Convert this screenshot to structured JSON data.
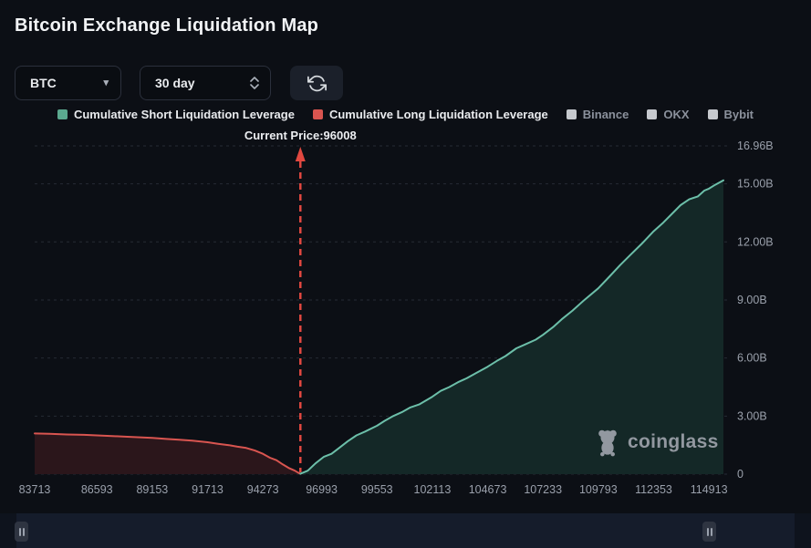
{
  "header": {
    "title": "Bitcoin Exchange Liquidation Map"
  },
  "controls": {
    "symbol_select": {
      "value": "BTC"
    },
    "range_select": {
      "value": "30 day"
    }
  },
  "icons": {
    "symbol_caret": "▾"
  },
  "legend": {
    "items": [
      {
        "label": "Cumulative Short Liquidation Leverage",
        "color": "#5ba98f",
        "active": true
      },
      {
        "label": "Cumulative Long Liquidation Leverage",
        "color": "#d95550",
        "active": true
      },
      {
        "label": "Binance",
        "color": "#c6c9ce",
        "active": false
      },
      {
        "label": "OKX",
        "color": "#c6c9ce",
        "active": false
      },
      {
        "label": "Bybit",
        "color": "#c6c9ce",
        "active": false
      }
    ]
  },
  "watermark": {
    "text": "coinglass"
  },
  "colors": {
    "background": "#0c0f15",
    "grid": "#262b35",
    "axis_label": "#9aa0ab",
    "short_line": "#6cbfa9",
    "short_fill": "#142827",
    "long_line": "#d95550",
    "long_fill": "#2b161b",
    "annotation": "#e14840"
  },
  "chart_data": {
    "type": "line",
    "title": "Bitcoin Exchange Liquidation Map",
    "legend_position": "top-center",
    "grid": "horizontal-dashed",
    "x_axis": {
      "min": 83713,
      "max": 115878,
      "tick_values": [
        83713,
        86593,
        89153,
        91713,
        94273,
        96993,
        99553,
        102113,
        104673,
        107233,
        109793,
        112353,
        114913
      ],
      "tick_labels": [
        "83713",
        "86593",
        "89153",
        "91713",
        "94273",
        "96993",
        "99553",
        "102113",
        "104673",
        "107233",
        "109793",
        "112353",
        "114913"
      ]
    },
    "y_axis": {
      "min": 0,
      "max": 16.96,
      "position": "right",
      "ticks": [
        {
          "value": 0,
          "label": "0"
        },
        {
          "value": 3,
          "label": "3.00B"
        },
        {
          "value": 6,
          "label": "6.00B"
        },
        {
          "value": 9,
          "label": "9.00B"
        },
        {
          "value": 12,
          "label": "12.00B"
        },
        {
          "value": 15,
          "label": "15.00B"
        },
        {
          "value": 16.96,
          "label": "16.96B"
        }
      ]
    },
    "annotation": {
      "label": "Current Price:96008",
      "price": 96008,
      "color": "#e14840"
    },
    "series": [
      {
        "name": "Cumulative Long Liquidation Leverage",
        "color": "#d95550",
        "fill": "#2b161b",
        "points": [
          [
            83713,
            2.1
          ],
          [
            84400,
            2.08
          ],
          [
            85200,
            2.05
          ],
          [
            86000,
            2.03
          ],
          [
            86593,
            2.0
          ],
          [
            87300,
            1.97
          ],
          [
            88000,
            1.93
          ],
          [
            88700,
            1.9
          ],
          [
            89153,
            1.87
          ],
          [
            89800,
            1.82
          ],
          [
            90400,
            1.78
          ],
          [
            91000,
            1.73
          ],
          [
            91713,
            1.65
          ],
          [
            92200,
            1.57
          ],
          [
            92700,
            1.5
          ],
          [
            93100,
            1.42
          ],
          [
            93500,
            1.35
          ],
          [
            93900,
            1.22
          ],
          [
            94273,
            1.05
          ],
          [
            94600,
            0.85
          ],
          [
            94900,
            0.72
          ],
          [
            95200,
            0.5
          ],
          [
            95500,
            0.3
          ],
          [
            95750,
            0.18
          ],
          [
            95900,
            0.08
          ],
          [
            96008,
            0.02
          ]
        ]
      },
      {
        "name": "Cumulative Short Liquidation Leverage",
        "color": "#6cbfa9",
        "fill": "#142827",
        "points": [
          [
            96008,
            0.02
          ],
          [
            96350,
            0.18
          ],
          [
            96700,
            0.55
          ],
          [
            97100,
            0.9
          ],
          [
            97450,
            1.05
          ],
          [
            97800,
            1.35
          ],
          [
            98200,
            1.7
          ],
          [
            98600,
            2.0
          ],
          [
            99000,
            2.2
          ],
          [
            99553,
            2.5
          ],
          [
            99900,
            2.75
          ],
          [
            100300,
            3.0
          ],
          [
            100700,
            3.2
          ],
          [
            101100,
            3.45
          ],
          [
            101500,
            3.6
          ],
          [
            102113,
            4.0
          ],
          [
            102500,
            4.3
          ],
          [
            102900,
            4.5
          ],
          [
            103300,
            4.75
          ],
          [
            103700,
            4.95
          ],
          [
            104100,
            5.2
          ],
          [
            104673,
            5.55
          ],
          [
            105100,
            5.85
          ],
          [
            105500,
            6.1
          ],
          [
            106000,
            6.5
          ],
          [
            106400,
            6.7
          ],
          [
            106900,
            6.95
          ],
          [
            107233,
            7.2
          ],
          [
            107700,
            7.6
          ],
          [
            108100,
            8.0
          ],
          [
            108600,
            8.45
          ],
          [
            109100,
            8.95
          ],
          [
            109793,
            9.6
          ],
          [
            110300,
            10.2
          ],
          [
            110800,
            10.8
          ],
          [
            111300,
            11.35
          ],
          [
            111800,
            11.9
          ],
          [
            112353,
            12.55
          ],
          [
            112800,
            13.0
          ],
          [
            113200,
            13.45
          ],
          [
            113600,
            13.9
          ],
          [
            114000,
            14.2
          ],
          [
            114400,
            14.35
          ],
          [
            114700,
            14.65
          ],
          [
            114913,
            14.75
          ],
          [
            115200,
            14.95
          ],
          [
            115583,
            15.18
          ]
        ]
      }
    ]
  }
}
